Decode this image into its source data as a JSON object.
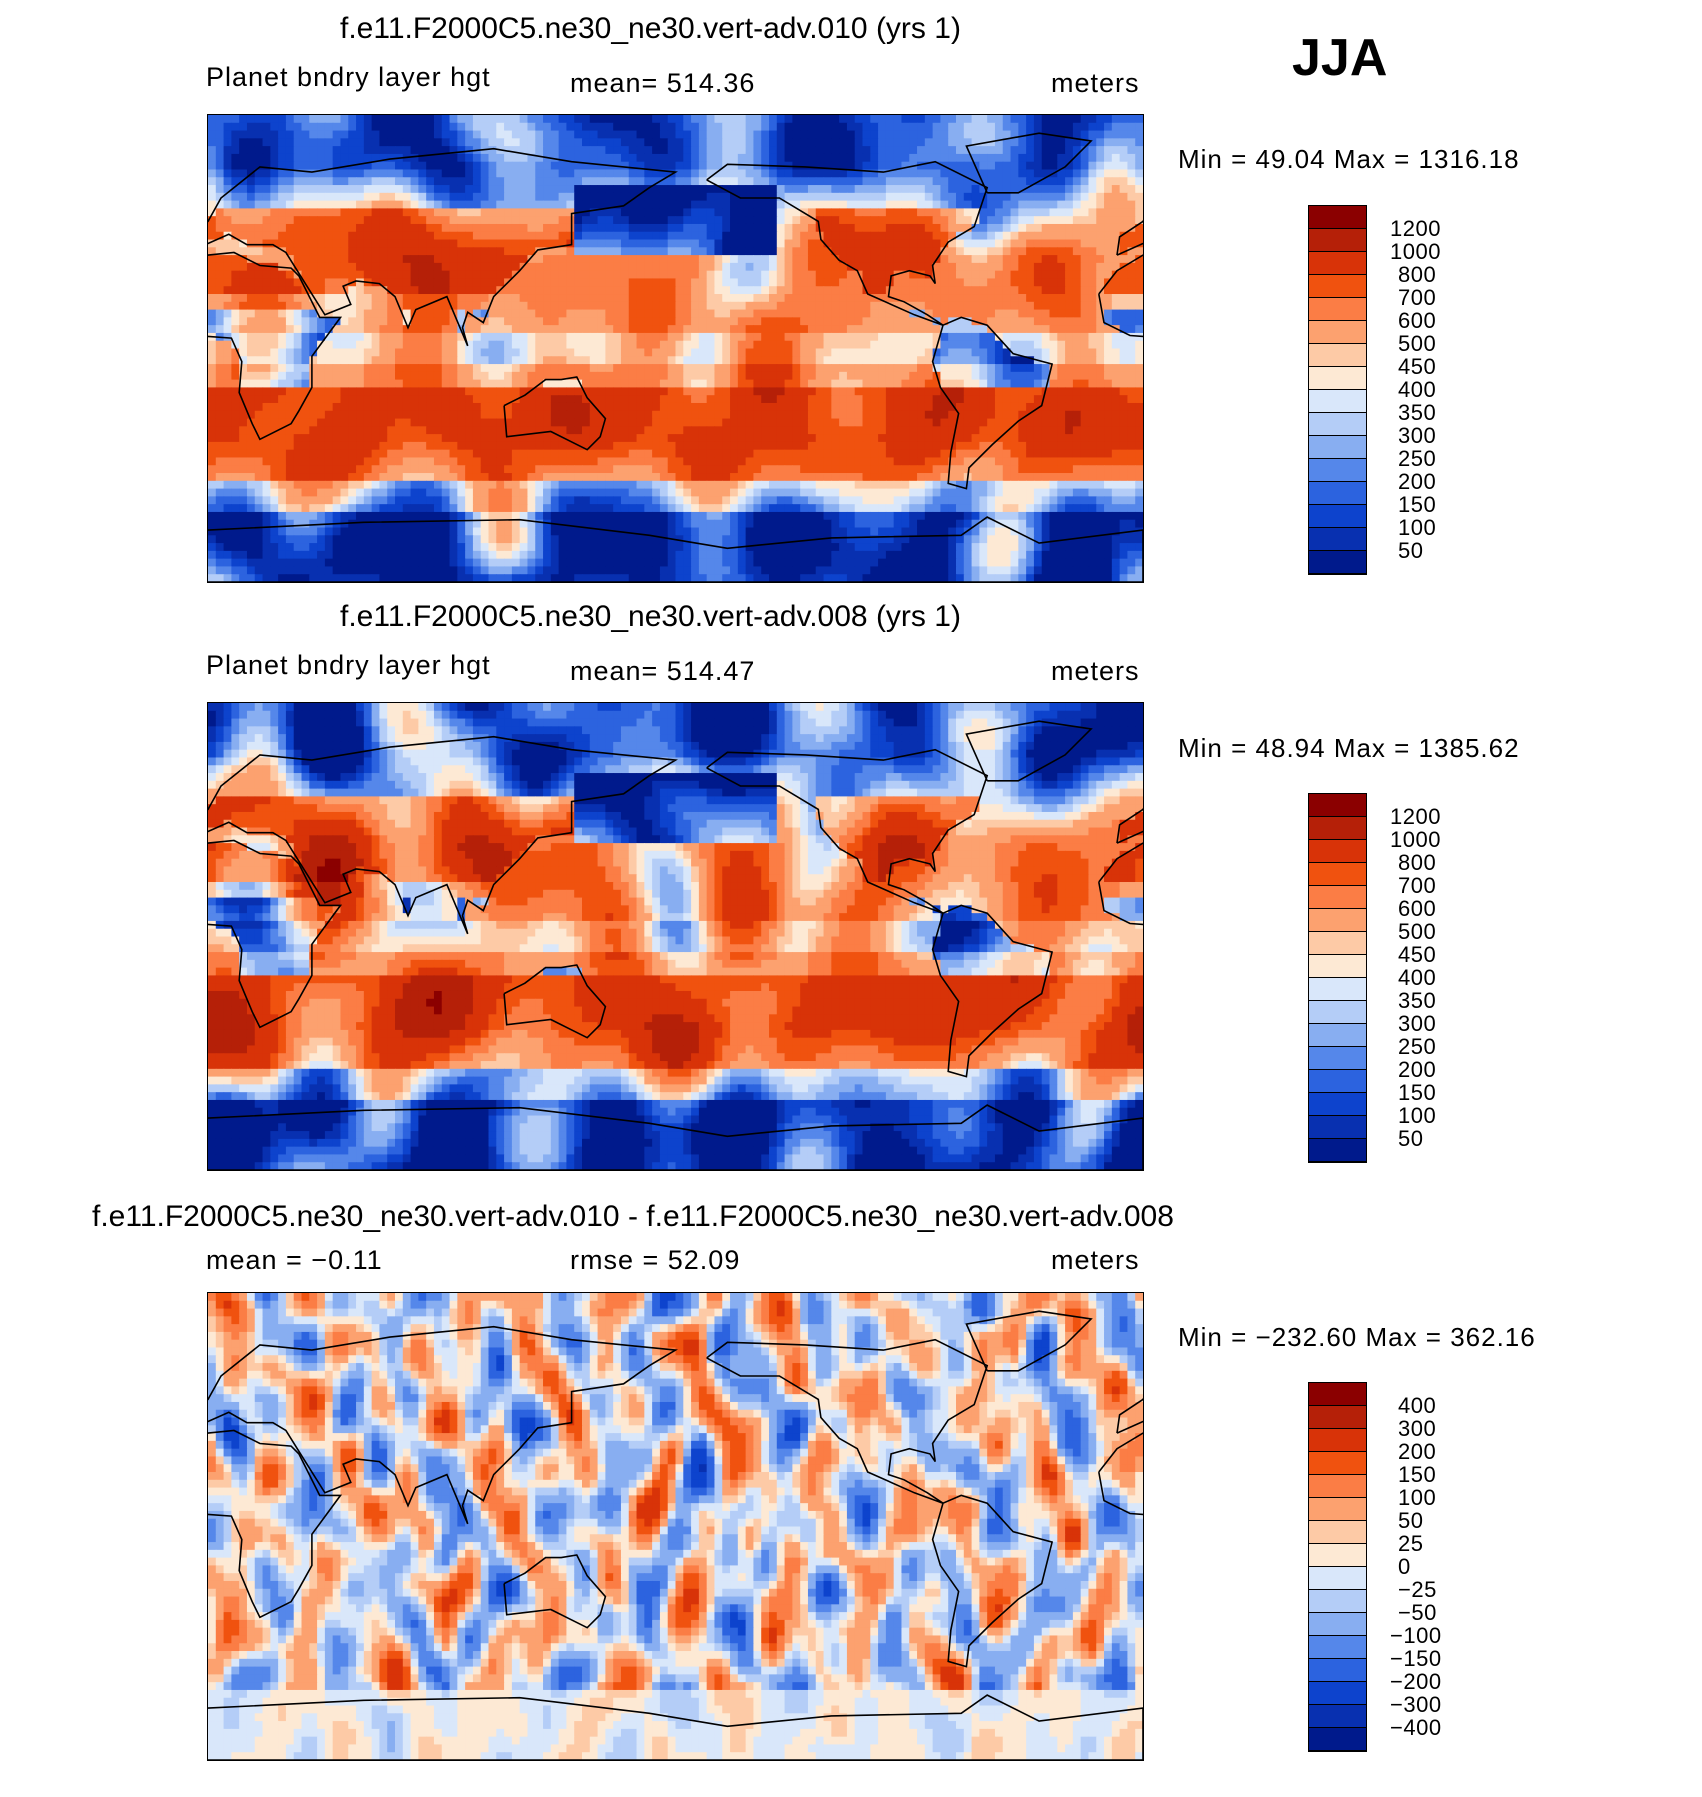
{
  "season": "JJA",
  "units": "meters",
  "variable": "Planet bndry layer hgt",
  "abs_levels": [
    "1200",
    "1000",
    "800",
    "700",
    "600",
    "500",
    "450",
    "400",
    "350",
    "300",
    "250",
    "200",
    "150",
    "100",
    "50"
  ],
  "abs_colors": [
    "#8b0000",
    "#b52008",
    "#d83308",
    "#f0520f",
    "#fb7d45",
    "#fca16f",
    "#fdcaa6",
    "#fde9d4",
    "#d9e7fa",
    "#b4cdf7",
    "#88aef1",
    "#5587ea",
    "#2c63df",
    "#0d43cd",
    "#0830b0",
    "#001a8c"
  ],
  "diff_levels": [
    "400",
    "300",
    "200",
    "150",
    "100",
    "50",
    "25",
    "0",
    "−25",
    "−50",
    "−100",
    "−150",
    "−200",
    "−300",
    "−400"
  ],
  "diff_colors": [
    "#8b0000",
    "#b52008",
    "#d83308",
    "#f0520f",
    "#fb7d45",
    "#fca16f",
    "#fdcaa6",
    "#fde9d4",
    "#d9e7fa",
    "#b4cdf7",
    "#88aef1",
    "#5587ea",
    "#2c63df",
    "#0d43cd",
    "#0830b0",
    "#001a8c"
  ],
  "panels": [
    {
      "title": "f.e11.F2000C5.ne30_ne30.vert-adv.010 (yrs 1)",
      "left_label": "Planet bndry layer hgt",
      "center_label": "mean=  514.36",
      "right_label": "meters",
      "minmax": "Min =   49.04  Max  =  1316.18"
    },
    {
      "title": "f.e11.F2000C5.ne30_ne30.vert-adv.008 (yrs 1)",
      "left_label": "Planet bndry layer hgt",
      "center_label": "mean=  514.47",
      "right_label": "meters",
      "minmax": "Min =   48.94  Max  =  1385.62"
    },
    {
      "title": "f.e11.F2000C5.ne30_ne30.vert-adv.010 - f.e11.F2000C5.ne30_ne30.vert-adv.008",
      "left_label": "mean  =   −0.11",
      "center_label": "rmse  =    52.09",
      "right_label": "meters",
      "minmax": "Min  =  −232.60  Max  =  362.16"
    }
  ],
  "chart_data": [
    {
      "type": "heatmap",
      "title": "f.e11.F2000C5.ne30_ne30.vert-adv.010 (yrs 1)",
      "variable": "Planet bndry layer hgt",
      "units": "meters",
      "mean": 514.36,
      "min": 49.04,
      "max": 1316.18,
      "contour_levels": [
        50,
        100,
        150,
        200,
        250,
        300,
        350,
        400,
        450,
        500,
        600,
        700,
        800,
        1000,
        1200
      ],
      "season": "JJA"
    },
    {
      "type": "heatmap",
      "title": "f.e11.F2000C5.ne30_ne30.vert-adv.008 (yrs 1)",
      "variable": "Planet bndry layer hgt",
      "units": "meters",
      "mean": 514.47,
      "min": 48.94,
      "max": 1385.62,
      "contour_levels": [
        50,
        100,
        150,
        200,
        250,
        300,
        350,
        400,
        450,
        500,
        600,
        700,
        800,
        1000,
        1200
      ],
      "season": "JJA"
    },
    {
      "type": "heatmap",
      "title": "f.e11.F2000C5.ne30_ne30.vert-adv.010 - f.e11.F2000C5.ne30_ne30.vert-adv.008",
      "units": "meters",
      "mean": -0.11,
      "rmse": 52.09,
      "min": -232.6,
      "max": 362.16,
      "contour_levels": [
        -400,
        -300,
        -200,
        -150,
        -100,
        -50,
        -25,
        0,
        25,
        50,
        100,
        150,
        200,
        300,
        400
      ],
      "season": "JJA"
    }
  ]
}
